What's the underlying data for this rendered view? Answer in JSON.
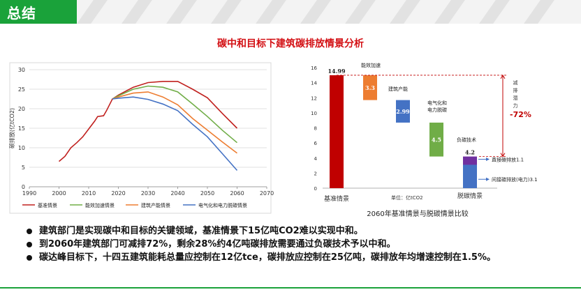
{
  "header": {
    "title": "总结"
  },
  "page_title": "碳中和目标下建筑碳排放情景分析",
  "chart_data": [
    {
      "type": "line",
      "ylabel": "碳排放(亿tCO2)",
      "xlim": [
        1990,
        2070
      ],
      "ylim": [
        0,
        30
      ],
      "x_ticks": [
        "1990",
        "2000",
        "2010",
        "2020",
        "2030",
        "2040",
        "2050",
        "2060",
        "2070"
      ],
      "y_ticks": [
        "0",
        "5",
        "10",
        "15",
        "20",
        "25",
        "30"
      ],
      "grid": true,
      "legend_position": "bottom",
      "series": [
        {
          "name": "基准情景",
          "color": "#c0201e",
          "x": [
            2000,
            2002,
            2004,
            2006,
            2008,
            2010,
            2012,
            2013,
            2015,
            2016,
            2018,
            2020,
            2025,
            2030,
            2035,
            2040,
            2045,
            2050,
            2055,
            2060
          ],
          "y": [
            6.5,
            7.8,
            10.0,
            11.3,
            12.8,
            14.8,
            16.8,
            18.0,
            18.2,
            19.5,
            22.5,
            23.5,
            25.5,
            26.7,
            27.0,
            27.0,
            25.0,
            22.8,
            18.8,
            15.0
          ]
        },
        {
          "name": "能效加速情景",
          "color": "#70ad47",
          "x": [
            2018,
            2020,
            2025,
            2030,
            2035,
            2040,
            2045,
            2050,
            2055,
            2060
          ],
          "y": [
            22.5,
            23.3,
            25.0,
            25.8,
            25.5,
            24.3,
            21.2,
            18.0,
            14.5,
            11.3
          ]
        },
        {
          "name": "建筑产能情景",
          "color": "#ed7d31",
          "x": [
            2018,
            2020,
            2025,
            2030,
            2035,
            2040,
            2045,
            2050,
            2055,
            2060
          ],
          "y": [
            22.5,
            23.0,
            24.0,
            24.3,
            23.0,
            21.0,
            17.5,
            14.5,
            11.5,
            8.6
          ]
        },
        {
          "name": "电气化和电力脱碳情景",
          "color": "#4472c4",
          "x": [
            2018,
            2020,
            2025,
            2030,
            2035,
            2040,
            2045,
            2050,
            2055,
            2060
          ],
          "y": [
            22.5,
            22.7,
            23.0,
            22.4,
            21.2,
            19.5,
            16.0,
            12.8,
            8.5,
            4.2
          ]
        }
      ]
    },
    {
      "type": "bar",
      "subtype": "waterfall",
      "title": "2060年基准情景与脱碳情景比较",
      "unit_label": "单位：亿tCO2",
      "ylim": [
        0,
        16
      ],
      "y_ticks": [
        "0",
        "2",
        "4",
        "6",
        "8",
        "10",
        "12",
        "14",
        "16"
      ],
      "categories": [
        "基准情景",
        "能效加速",
        "建筑产能",
        "电气化和电力脱碳",
        "负碳技术"
      ],
      "x_labels": [
        "基准情景",
        "",
        "",
        "",
        "脱碳情景"
      ],
      "category_labels": [
        "",
        "能效加速",
        "建筑产能",
        "电气化和\n电力脱碳",
        "负碳技术"
      ],
      "values": [
        14.99,
        3.3,
        2.99,
        4.5,
        4.2
      ],
      "bar_bottoms": [
        0,
        11.69,
        8.7,
        4.2,
        0
      ],
      "bar_tops": [
        14.99,
        14.99,
        11.69,
        8.7,
        4.2
      ],
      "value_labels": [
        "14.99",
        "3.3",
        "2.99",
        "4.5",
        "4.2"
      ],
      "colors": [
        "#c00000",
        "#ed7d31",
        "#4472c4",
        "#70ad47",
        "#4472c4"
      ],
      "stack_segments": [
        {
          "bottom": 3.1,
          "top": 4.2,
          "color": "#7030a0",
          "label": "直接碳排放1.1"
        },
        {
          "bottom": 0,
          "top": 3.1,
          "color": "#4472c4",
          "label": "间接碳排放(电力)3.1"
        }
      ],
      "annotation": {
        "text_chars": [
          "减",
          "排",
          "潜",
          "力"
        ],
        "percent": "-72%",
        "color": "#c00000"
      }
    }
  ],
  "bullets": [
    "建筑部门是实现碳中和目标的关键领域，基准情景下15亿吨CO2难以实现中和。",
    "到2060年建筑部门可减排72%，剩余28%约4亿吨碳排放需要通过负碳技术予以中和。",
    "碳达峰目标下，十四五建筑能耗总量应控制在12亿tce，碳排放应控制在25亿吨，碳排放年均增速控制在1.5%。"
  ]
}
